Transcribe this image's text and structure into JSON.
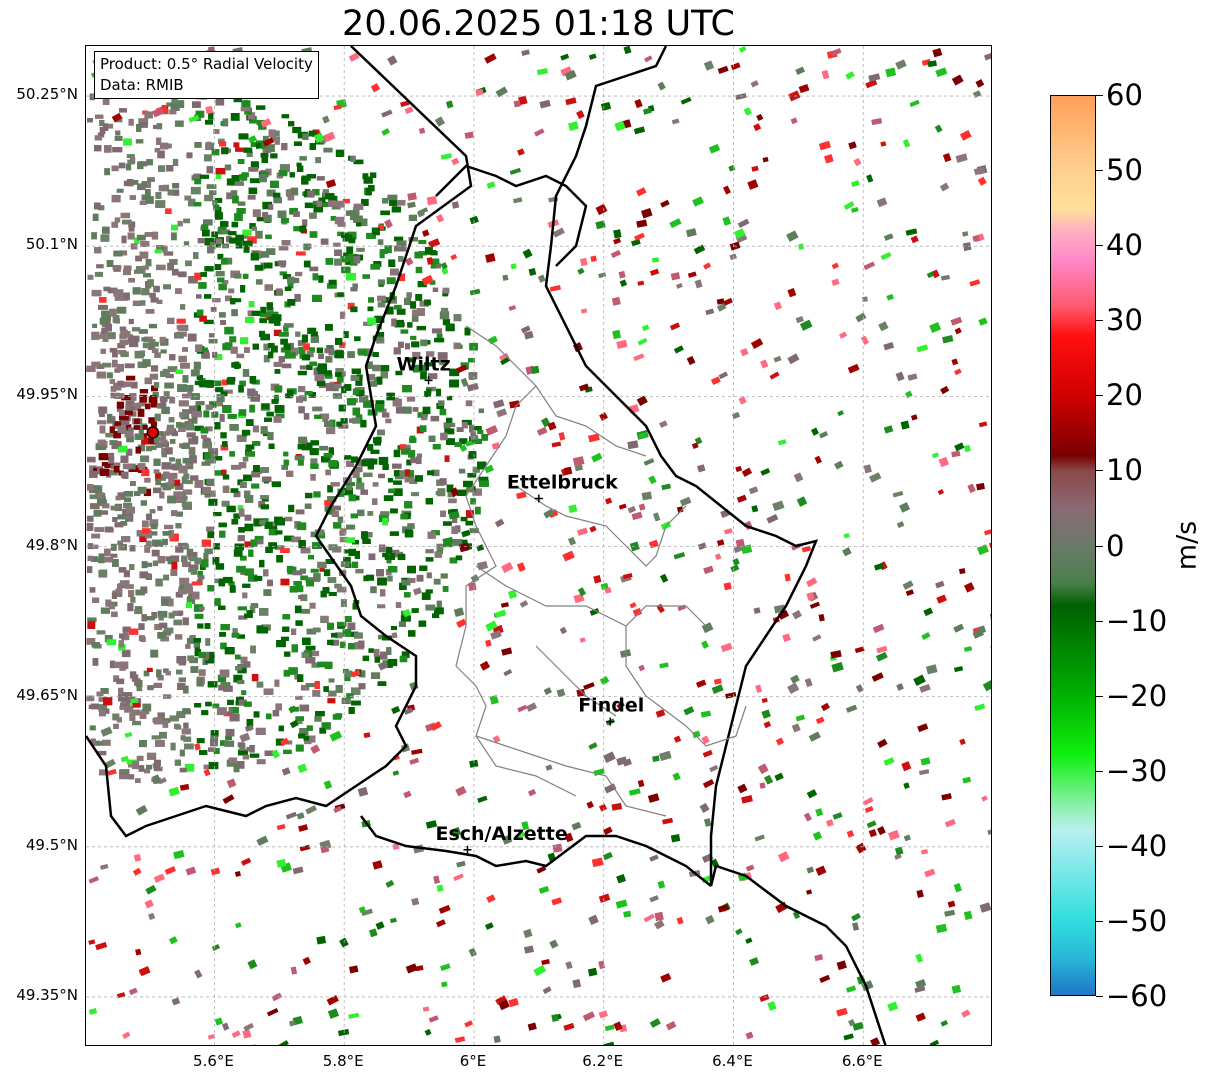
{
  "title": "20.06.2025 01:18 UTC",
  "info": {
    "product": "Product: 0.5° Radial Velocity",
    "data": "Data: RMIB"
  },
  "axes": {
    "lat_labels": [
      "50.25°N",
      "50.1°N",
      "49.95°N",
      "49.8°N",
      "49.65°N",
      "49.5°N",
      "49.35°N"
    ],
    "lat_values": [
      50.25,
      50.1,
      49.95,
      49.8,
      49.65,
      49.5,
      49.35
    ],
    "lon_labels": [
      "5.6°E",
      "5.8°E",
      "6°E",
      "6.2°E",
      "6.4°E",
      "6.6°E"
    ],
    "lon_values": [
      5.6,
      5.8,
      6.0,
      6.2,
      6.4,
      6.6
    ],
    "lat_range": [
      49.3,
      50.3
    ],
    "lon_range": [
      5.402,
      6.8
    ],
    "grid": true
  },
  "cities": [
    {
      "name": "Wiltz",
      "lon": 5.93,
      "lat": 49.966
    },
    {
      "name": "Ettelbruck",
      "lon": 6.1,
      "lat": 49.848
    },
    {
      "name": "Findel",
      "lon": 6.21,
      "lat": 49.625
    },
    {
      "name": "Esch/Alzette",
      "lon": 5.99,
      "lat": 49.497
    }
  ],
  "radar_site": {
    "lon": 5.505,
    "lat": 49.914
  },
  "colorbar": {
    "unit": "m/s",
    "min": -60,
    "max": 60,
    "ticks": [
      "60",
      "50",
      "40",
      "30",
      "20",
      "10",
      "0",
      "−10",
      "−20",
      "−30",
      "−40",
      "−50",
      "−60"
    ],
    "stops": [
      {
        "v": 60,
        "c": "#ff9f5a"
      },
      {
        "v": 50,
        "c": "#ffd090"
      },
      {
        "v": 45,
        "c": "#ffe09a"
      },
      {
        "v": 42,
        "c": "#ffb0c0"
      },
      {
        "v": 38,
        "c": "#ff88c8"
      },
      {
        "v": 32,
        "c": "#ff5a70"
      },
      {
        "v": 28,
        "c": "#ff1010"
      },
      {
        "v": 20,
        "c": "#d00000"
      },
      {
        "v": 12,
        "c": "#7a0000"
      },
      {
        "v": 10,
        "c": "#8a4848"
      },
      {
        "v": 5,
        "c": "#8a6a72"
      },
      {
        "v": 0,
        "c": "#6a7a6a"
      },
      {
        "v": -5,
        "c": "#4a804a"
      },
      {
        "v": -8,
        "c": "#006000"
      },
      {
        "v": -20,
        "c": "#00b000"
      },
      {
        "v": -28,
        "c": "#10f010"
      },
      {
        "v": -35,
        "c": "#90f0b0"
      },
      {
        "v": -38,
        "c": "#b8f0f0"
      },
      {
        "v": -50,
        "c": "#30dede"
      },
      {
        "v": -55,
        "c": "#28b8d8"
      },
      {
        "v": -60,
        "c": "#1f77c8"
      }
    ]
  },
  "echo_colors": [
    "#5f7d5c",
    "#6b8066",
    "#7e6a70",
    "#8a7578",
    "#1f8a1f",
    "#006400",
    "#20c020",
    "#30f030",
    "#cc1010",
    "#ff3030",
    "#a00000",
    "#7a0000",
    "#c05a70",
    "#ff6a80"
  ]
}
